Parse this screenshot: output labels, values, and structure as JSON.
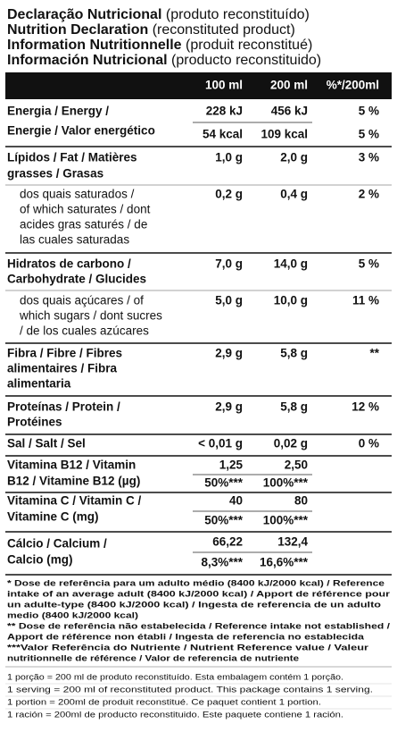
{
  "header": {
    "title_lines": [
      {
        "bold": "Declaração Nutricional",
        "normal": "(produto reconstituído)"
      },
      {
        "bold": "Nutrition Declaration",
        "normal": "(reconstituted product)"
      },
      {
        "bold": "Information Nutritionnelle",
        "normal": "(produit reconstitué)"
      },
      {
        "bold": "Información Nutricional",
        "normal": "(producto reconstituido)"
      }
    ]
  },
  "table": {
    "columns": [
      "100 ml",
      "200 ml",
      "%*/200ml"
    ],
    "rows": [
      {
        "label_lines": [
          "Energia / Energy /",
          "Energie / Valor energético"
        ],
        "values": [
          [
            "228 kJ",
            "456 kJ",
            "5 %"
          ],
          [
            "54 kcal",
            "109 kcal",
            "5 %"
          ]
        ]
      },
      {
        "label_lines": [
          "Lípidos / Fat / Matières",
          "grasses / Grasas"
        ],
        "values": [
          [
            "1,0 g",
            "2,0 g",
            "3 %"
          ]
        ]
      },
      {
        "label_lines": [
          "dos quais saturados /",
          "of which saturates / dont",
          "acides gras saturés / de",
          "las cuales saturadas"
        ],
        "values": [
          [
            "0,2 g",
            "0,4 g",
            "2 %"
          ]
        ]
      },
      {
        "label_lines": [
          "Hidratos de carbono /",
          "Carbohydrate / Glucides"
        ],
        "values": [
          [
            "7,0 g",
            "14,0 g",
            "5 %"
          ]
        ]
      },
      {
        "label_lines": [
          "dos quais açúcares / of",
          "which sugars / dont sucres",
          "/ de los cuales azúcares"
        ],
        "values": [
          [
            "5,0 g",
            "10,0 g",
            "11 %"
          ]
        ]
      },
      {
        "label_lines": [
          "Fibra / Fibre / Fibres",
          "alimentaires / Fibra",
          "alimentaria"
        ],
        "values": [
          [
            "2,9 g",
            "5,8 g",
            "**"
          ]
        ]
      },
      {
        "label_lines": [
          "Proteínas / Protein /",
          "Protéines"
        ],
        "values": [
          [
            "2,9 g",
            "5,8 g",
            "12 %"
          ]
        ]
      },
      {
        "label_lines": [
          "Sal / Salt / Sel"
        ],
        "values": [
          [
            "< 0,01 g",
            "0,02 g",
            "0 %"
          ]
        ]
      },
      {
        "label_lines": [
          "Vitamina B12 / Vitamin",
          "B12 / Vitamine B12 (µg)"
        ],
        "values": [
          [
            "1,25",
            "2,50"
          ],
          [
            "50%***",
            "100%***"
          ]
        ]
      },
      {
        "label_lines": [
          "Vitamina C / Vitamin C /",
          "Vitamine C (mg)"
        ],
        "values": [
          [
            "40",
            "80"
          ],
          [
            "50%***",
            "100%***"
          ]
        ]
      },
      {
        "label_lines": [
          "Cálcio / Calcium /",
          "Calcio (mg)"
        ],
        "values": [
          [
            "66,22",
            "132,4"
          ],
          [
            "8,3%***",
            "16,6%***"
          ]
        ]
      }
    ]
  },
  "footnotes": [
    "* Dose de referência para um adulto médio (8400 kJ/2000 kcal) / Reference",
    "intake of an average adult (8400 kJ/2000 kcal) / Apport de référence pour",
    "un adulte-type (8400 kJ/2000 kcal) / Ingesta de referencia de un adulto",
    "medio (8400 kJ/2000 kcal)",
    "** Dose de referência não estabelecida / Reference intake not established /",
    "Apport de référence non établi / Ingesta de referencia no establecida",
    "***Valor Referência do Nutriente / Nutrient Reference value / Valeur",
    "nutritionnelle de référence / Valor de referencia de nutriente"
  ],
  "serving": [
    "1 porção = 200 ml de produto reconstituído. Esta embalagem contém 1 porção.",
    "1 serving = 200 ml of reconstituted product. This package contains 1 serving.",
    "1 portion = 200ml de produit reconstitué. Ce paquet contient 1 portion.",
    "1 ración = 200ml de producto reconstituido. Este paquete contiene 1 ración."
  ]
}
